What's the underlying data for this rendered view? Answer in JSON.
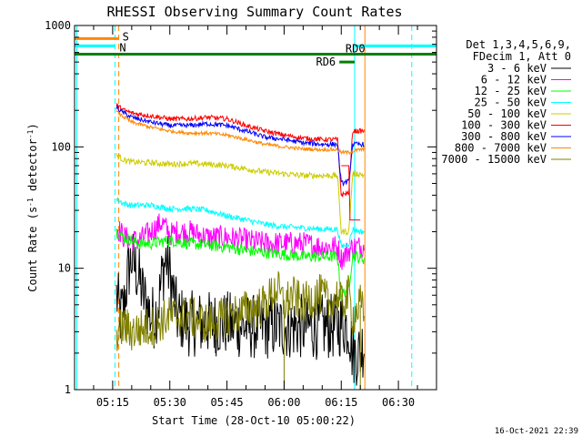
{
  "chart_data": {
    "type": "line",
    "title": "RHESSI Observing Summary Count Rates",
    "xlabel": "Start Time (28-Oct-10 05:00:22)",
    "ylabel_parts": [
      "Count Rate (s",
      "-1",
      " detector",
      "-1",
      ")"
    ],
    "yscale": "log",
    "ylim": [
      1,
      1000
    ],
    "xlim_minutes": [
      5.0,
      100.0
    ],
    "y_ticks": [
      {
        "value": 1,
        "label": "1"
      },
      {
        "value": 10,
        "label": "10"
      },
      {
        "value": 100,
        "label": "100"
      },
      {
        "value": 1000,
        "label": "1000"
      }
    ],
    "x_ticks": [
      {
        "minute": 15,
        "label": "05:15"
      },
      {
        "minute": 30,
        "label": "05:30"
      },
      {
        "minute": 45,
        "label": "05:45"
      },
      {
        "minute": 60,
        "label": "06:00"
      },
      {
        "minute": 75,
        "label": "06:15"
      },
      {
        "minute": 90,
        "label": "06:30"
      }
    ],
    "legend": {
      "placement": "right",
      "header": [
        "Det 1,3,4,5,6,9,",
        "FDecim 1, Att 0"
      ]
    },
    "series": [
      {
        "name": "3 - 6 keV",
        "color": "#000000",
        "points": [
          [
            16,
            6
          ],
          [
            17,
            4
          ],
          [
            18,
            5
          ],
          [
            19,
            9
          ],
          [
            20,
            12
          ],
          [
            21,
            10
          ],
          [
            22,
            8
          ],
          [
            23,
            6
          ],
          [
            24,
            5
          ],
          [
            25,
            4
          ],
          [
            26,
            4
          ],
          [
            27,
            5
          ],
          [
            28,
            9
          ],
          [
            29,
            12
          ],
          [
            30,
            9
          ],
          [
            31,
            6
          ],
          [
            32,
            4
          ],
          [
            35,
            3.5
          ],
          [
            40,
            3.5
          ],
          [
            45,
            3.5
          ],
          [
            50,
            3.3
          ],
          [
            55,
            3.3
          ],
          [
            60,
            3.3
          ],
          [
            65,
            3.3
          ],
          [
            70,
            3.3
          ],
          [
            74,
            3.3
          ],
          [
            75,
            3.5
          ],
          [
            77,
            3.3
          ],
          [
            78,
            2
          ],
          [
            80,
            2
          ],
          [
            81,
            2.5
          ]
        ]
      },
      {
        "name": "6 - 12 keV",
        "color": "#ff00ff",
        "points": [
          [
            16,
            22
          ],
          [
            18,
            18
          ],
          [
            20,
            17
          ],
          [
            22,
            17
          ],
          [
            25,
            20
          ],
          [
            28,
            24
          ],
          [
            30,
            19
          ],
          [
            32,
            20
          ],
          [
            35,
            20
          ],
          [
            40,
            18
          ],
          [
            45,
            18
          ],
          [
            50,
            17
          ],
          [
            55,
            16
          ],
          [
            60,
            16
          ],
          [
            65,
            16
          ],
          [
            70,
            15
          ],
          [
            74,
            15
          ],
          [
            75,
            12
          ],
          [
            77,
            14
          ],
          [
            78,
            15
          ],
          [
            80,
            15
          ],
          [
            81,
            16
          ]
        ]
      },
      {
        "name": "12 - 25 keV",
        "color": "#00ff00",
        "points": [
          [
            16,
            20
          ],
          [
            18,
            18
          ],
          [
            20,
            17
          ],
          [
            22,
            16
          ],
          [
            25,
            16
          ],
          [
            30,
            17
          ],
          [
            35,
            16
          ],
          [
            40,
            15.5
          ],
          [
            45,
            15
          ],
          [
            50,
            14
          ],
          [
            55,
            13.5
          ],
          [
            60,
            13
          ],
          [
            65,
            12.5
          ],
          [
            70,
            12.5
          ],
          [
            74,
            12.5
          ],
          [
            75,
            6
          ],
          [
            77,
            7
          ],
          [
            78,
            13
          ],
          [
            80,
            12
          ],
          [
            81,
            12
          ]
        ]
      },
      {
        "name": "25 - 50 keV",
        "color": "#00ffff",
        "points": [
          [
            16,
            37
          ],
          [
            18,
            34
          ],
          [
            20,
            33
          ],
          [
            25,
            33
          ],
          [
            30,
            31
          ],
          [
            35,
            31
          ],
          [
            40,
            30
          ],
          [
            45,
            27
          ],
          [
            50,
            25
          ],
          [
            55,
            23
          ],
          [
            60,
            22
          ],
          [
            65,
            21.5
          ],
          [
            70,
            21
          ],
          [
            74,
            21
          ],
          [
            75,
            15
          ],
          [
            77,
            16
          ],
          [
            78,
            21
          ],
          [
            80,
            20
          ],
          [
            81,
            20
          ]
        ]
      },
      {
        "name": "50 - 100 keV",
        "color": "#cccc00",
        "points": [
          [
            16,
            85
          ],
          [
            18,
            78
          ],
          [
            20,
            75
          ],
          [
            25,
            74
          ],
          [
            30,
            72
          ],
          [
            35,
            73
          ],
          [
            40,
            72
          ],
          [
            45,
            70
          ],
          [
            50,
            66
          ],
          [
            55,
            62
          ],
          [
            60,
            60
          ],
          [
            65,
            58
          ],
          [
            70,
            58
          ],
          [
            74,
            58
          ],
          [
            75,
            20
          ],
          [
            77,
            20
          ],
          [
            78,
            60
          ],
          [
            80,
            60
          ],
          [
            81,
            58
          ]
        ]
      },
      {
        "name": "100 - 300 keV",
        "color": "#ff0000",
        "points": [
          [
            16,
            220
          ],
          [
            18,
            200
          ],
          [
            20,
            190
          ],
          [
            25,
            180
          ],
          [
            30,
            170
          ],
          [
            35,
            170
          ],
          [
            40,
            175
          ],
          [
            45,
            170
          ],
          [
            50,
            150
          ],
          [
            55,
            135
          ],
          [
            60,
            125
          ],
          [
            65,
            118
          ],
          [
            70,
            115
          ],
          [
            74,
            115
          ],
          [
            75,
            40
          ],
          [
            77,
            42
          ],
          [
            78,
            135
          ],
          [
            80,
            135
          ],
          [
            81,
            135
          ]
        ]
      },
      {
        "name": "300 - 800 keV",
        "color": "#0000ff",
        "points": [
          [
            16,
            210
          ],
          [
            18,
            190
          ],
          [
            20,
            175
          ],
          [
            25,
            160
          ],
          [
            30,
            150
          ],
          [
            35,
            150
          ],
          [
            40,
            155
          ],
          [
            45,
            150
          ],
          [
            50,
            135
          ],
          [
            55,
            120
          ],
          [
            60,
            115
          ],
          [
            65,
            108
          ],
          [
            70,
            105
          ],
          [
            74,
            105
          ],
          [
            75,
            50
          ],
          [
            77,
            52
          ],
          [
            78,
            105
          ],
          [
            80,
            105
          ],
          [
            81,
            105
          ]
        ]
      },
      {
        "name": "800 - 7000 keV",
        "color": "#ff8800",
        "points": [
          [
            16,
            195
          ],
          [
            18,
            175
          ],
          [
            20,
            160
          ],
          [
            25,
            145
          ],
          [
            30,
            135
          ],
          [
            35,
            130
          ],
          [
            40,
            130
          ],
          [
            45,
            125
          ],
          [
            50,
            115
          ],
          [
            55,
            105
          ],
          [
            60,
            100
          ],
          [
            65,
            96
          ],
          [
            70,
            95
          ],
          [
            74,
            95
          ],
          [
            75,
            90
          ],
          [
            77,
            90
          ],
          [
            78,
            92
          ],
          [
            80,
            95
          ],
          [
            81,
            95
          ]
        ]
      },
      {
        "name": "7000 - 15000 keV",
        "color": "#808000",
        "points": [
          [
            16,
            3
          ],
          [
            18,
            3.3
          ],
          [
            20,
            3
          ],
          [
            25,
            3.3
          ],
          [
            30,
            4
          ],
          [
            35,
            4
          ],
          [
            40,
            3.5
          ],
          [
            45,
            4
          ],
          [
            50,
            4.5
          ],
          [
            55,
            5
          ],
          [
            58,
            7
          ],
          [
            60,
            5
          ],
          [
            62,
            6
          ],
          [
            65,
            5
          ],
          [
            68,
            6
          ],
          [
            70,
            6
          ],
          [
            72,
            5
          ],
          [
            74,
            6
          ],
          [
            75,
            5
          ],
          [
            77,
            6
          ],
          [
            78,
            4
          ],
          [
            80,
            5
          ],
          [
            81,
            4
          ]
        ]
      }
    ],
    "spikes": [
      {
        "series": "3 - 6 keV",
        "minute": 42,
        "value": 2
      },
      {
        "series": "7000 - 15000 keV",
        "minute": 60,
        "value": 1
      },
      {
        "series": "7000 - 15000 keV",
        "minute": 80,
        "value": 1
      }
    ],
    "attenuator_state": [
      {
        "minute": 75,
        "value": 70
      },
      {
        "minute": 77,
        "value": 70
      },
      {
        "minute": 77.3,
        "value": 25
      },
      {
        "minute": 80,
        "value": 25
      }
    ],
    "markers": {
      "S_bar": {
        "label": "S",
        "color": "#ff8800",
        "x_start": 5,
        "x_end": 16.6,
        "value": 780
      },
      "N_bar": {
        "label": "N",
        "color": "#00ffff",
        "x_start": 5,
        "x_end": 15.6,
        "value": 680
      },
      "RD_bar": {
        "label": "RD0",
        "color": "#008000",
        "x_start": 5,
        "x_end": 100,
        "value": 580
      },
      "RD6": {
        "label": "RD6",
        "color": "#008000",
        "x_start": 74.5,
        "x_end": 78.5,
        "value": 500
      },
      "cyan_right_bar": {
        "color": "#00ffff",
        "x_start": 78.5,
        "x_end": 100,
        "value": 680
      },
      "vlines": [
        {
          "minute": 5.6,
          "color": "#00ffff",
          "style": "solid"
        },
        {
          "minute": 15.6,
          "color": "#00ffff",
          "style": "dashed"
        },
        {
          "minute": 16.6,
          "color": "#ff8800",
          "style": "dashed"
        },
        {
          "minute": 78.5,
          "color": "#00ffff",
          "style": "solid"
        },
        {
          "minute": 81.2,
          "color": "#ff8800",
          "style": "solid"
        },
        {
          "minute": 93.5,
          "color": "#00ffff",
          "style": "dashed"
        }
      ]
    },
    "timestamp": "16-Oct-2021 22:39"
  }
}
